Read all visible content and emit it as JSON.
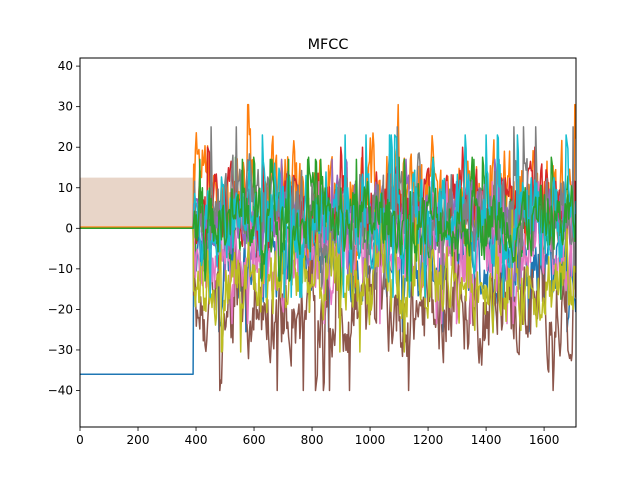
{
  "chart_data": {
    "type": "line",
    "title": "MFCC",
    "xlabel": "",
    "ylabel": "",
    "xlim": [
      0,
      1710
    ],
    "ylim": [
      -49,
      42
    ],
    "xticks": [
      0,
      200,
      400,
      600,
      800,
      1000,
      1200,
      1400,
      1600
    ],
    "yticks": [
      -40,
      -30,
      -20,
      -10,
      0,
      10,
      20,
      30,
      40
    ],
    "grid": false,
    "legend": "none",
    "silence_end_frame": 390,
    "series": [
      {
        "color": "#1f77b4",
        "silence": -36,
        "mean": -8,
        "spread": 7,
        "min": -40,
        "max": 29
      },
      {
        "color": "#ff7f0e",
        "silence": 0.3,
        "mean": 8,
        "spread": 9,
        "min": -22,
        "max": 36.5
      },
      {
        "color": "#2ca02c",
        "silence": 0,
        "mean": 0,
        "spread": 7,
        "min": -32,
        "max": 33
      },
      {
        "color": "#d62728",
        "silence": 0,
        "mean": 5,
        "spread": 6,
        "min": -22,
        "max": 20
      },
      {
        "color": "#9467bd",
        "silence": 0,
        "mean": 2,
        "spread": 6,
        "min": -22,
        "max": 18
      },
      {
        "color": "#8c564b",
        "silence": 0,
        "mean": -20,
        "spread": 8,
        "min": -44.5,
        "max": 10
      },
      {
        "color": "#e377c2",
        "silence": 0,
        "mean": -6,
        "spread": 7,
        "min": -27,
        "max": 15
      },
      {
        "color": "#7f7f7f",
        "silence": 0,
        "mean": 5,
        "spread": 8,
        "min": -39,
        "max": 32
      },
      {
        "color": "#bcbd22",
        "silence": 0,
        "mean": -13,
        "spread": 7,
        "min": -32,
        "max": 10
      },
      {
        "color": "#17becf",
        "silence": 0,
        "mean": 3,
        "spread": 8,
        "min": -39,
        "max": 30
      },
      {
        "color": "#2ca02c",
        "silence": 0,
        "mean": 2,
        "spread": 6,
        "min": -30,
        "max": 22
      }
    ],
    "band": {
      "color": "#e8d5c8",
      "from": 0.3,
      "to": 12.5,
      "x_end": 390
    }
  }
}
